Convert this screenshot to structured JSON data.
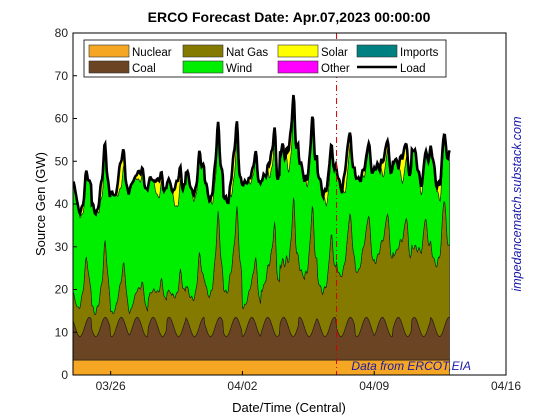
{
  "chart_data": {
    "type": "area",
    "title": "ERCO Forecast Date: Apr.07,2023 00:00:00",
    "xlabel": "Date/Time (Central)",
    "ylabel": "Source Gen (GW)",
    "ylim": [
      0,
      80
    ],
    "yticks": [
      0,
      10,
      20,
      30,
      40,
      50,
      60,
      70,
      80
    ],
    "xlim": [
      "2023-03-24",
      "2023-04-16"
    ],
    "xticks": [
      {
        "date": "2023-03-26",
        "label": "03/26"
      },
      {
        "date": "2023-04-02",
        "label": "04/02"
      },
      {
        "date": "2023-04-09",
        "label": "04/09"
      },
      {
        "date": "2023-04-16",
        "label": "04/16"
      }
    ],
    "data_start": "2023-03-24",
    "data_end": "2023-04-13T00:00",
    "forecast_line": "2023-04-07T00:00",
    "legend": {
      "placement": "top",
      "entries": [
        {
          "name": "Nuclear",
          "color": "#f5a623",
          "kind": "patch"
        },
        {
          "name": "Nat Gas",
          "color": "#857a00",
          "kind": "patch"
        },
        {
          "name": "Solar",
          "color": "#ffff00",
          "kind": "patch"
        },
        {
          "name": "Imports",
          "color": "#008080",
          "kind": "patch"
        },
        {
          "name": "Coal",
          "color": "#6b4523",
          "kind": "patch"
        },
        {
          "name": "Wind",
          "color": "#00ee00",
          "kind": "patch"
        },
        {
          "name": "Other",
          "color": "#ff00ff",
          "kind": "patch"
        },
        {
          "name": "Load",
          "color": "#000000",
          "kind": "line"
        }
      ]
    },
    "daily": [
      {
        "date": "03/24",
        "load_min": 34,
        "load_max": 45,
        "wind_min": 18,
        "wind_max": 26,
        "gas_min": 6,
        "gas_max": 15
      },
      {
        "date": "03/25",
        "load_min": 33,
        "load_max": 47,
        "wind_min": 20,
        "wind_max": 24,
        "gas_min": 5,
        "gas_max": 18
      },
      {
        "date": "03/26",
        "load_min": 34,
        "load_max": 47,
        "wind_min": 22,
        "wind_max": 28,
        "gas_min": 5,
        "gas_max": 13
      },
      {
        "date": "03/27",
        "load_min": 35,
        "load_max": 46,
        "wind_min": 25,
        "wind_max": 29,
        "gas_min": 5,
        "gas_max": 11
      },
      {
        "date": "03/28",
        "load_min": 35,
        "load_max": 47,
        "wind_min": 22,
        "wind_max": 27,
        "gas_min": 6,
        "gas_max": 13
      },
      {
        "date": "03/29",
        "load_min": 34,
        "load_max": 46,
        "wind_min": 20,
        "wind_max": 26,
        "gas_min": 6,
        "gas_max": 15
      },
      {
        "date": "03/30",
        "load_min": 34,
        "load_max": 48,
        "wind_min": 22,
        "wind_max": 27,
        "gas_min": 7,
        "gas_max": 17
      },
      {
        "date": "03/31",
        "load_min": 35,
        "load_max": 52,
        "wind_min": 18,
        "wind_max": 24,
        "gas_min": 9,
        "gas_max": 24
      },
      {
        "date": "04/01",
        "load_min": 36,
        "load_max": 53,
        "wind_min": 16,
        "wind_max": 22,
        "gas_min": 10,
        "gas_max": 26
      },
      {
        "date": "04/02",
        "load_min": 34,
        "load_max": 47,
        "wind_min": 23,
        "wind_max": 29,
        "gas_min": 6,
        "gas_max": 15
      },
      {
        "date": "04/03",
        "load_min": 36,
        "load_max": 53,
        "wind_min": 19,
        "wind_max": 26,
        "gas_min": 9,
        "gas_max": 26
      },
      {
        "date": "04/04",
        "load_min": 37,
        "load_max": 60,
        "wind_min": 20,
        "wind_max": 27,
        "gas_min": 12,
        "gas_max": 32
      },
      {
        "date": "04/05",
        "load_min": 36,
        "load_max": 55,
        "wind_min": 19,
        "wind_max": 25,
        "gas_min": 11,
        "gas_max": 29
      },
      {
        "date": "04/06",
        "load_min": 34,
        "load_max": 45,
        "wind_min": 18,
        "wind_max": 25,
        "gas_min": 9,
        "gas_max": 21
      },
      {
        "date": "04/07",
        "load_min": 33,
        "load_max": 43,
        "wind_min": 15,
        "wind_max": 22,
        "gas_min": 14,
        "gas_max": 24
      },
      {
        "date": "04/08",
        "load_min": 32,
        "load_max": 44,
        "wind_min": 15,
        "wind_max": 22,
        "gas_min": 15,
        "gas_max": 25
      },
      {
        "date": "04/09",
        "load_min": 33,
        "load_max": 47,
        "wind_min": 14,
        "wind_max": 22,
        "gas_min": 16,
        "gas_max": 27
      },
      {
        "date": "04/10",
        "load_min": 34,
        "load_max": 47,
        "wind_min": 13,
        "wind_max": 22,
        "gas_min": 16,
        "gas_max": 28
      },
      {
        "date": "04/11",
        "load_min": 35,
        "load_max": 48,
        "wind_min": 13,
        "wind_max": 23,
        "gas_min": 16,
        "gas_max": 28
      },
      {
        "date": "04/12",
        "load_min": 35,
        "load_max": 49,
        "wind_min": 12,
        "wind_max": 23,
        "gas_min": 15,
        "gas_max": 30
      }
    ],
    "nuclear_gw": 3.5,
    "coal_gw": [
      5.5,
      10
    ],
    "solar_peak_gw": [
      2,
      6
    ],
    "annotations": [
      "Data from ERCOT,EIA",
      "impedancematch.substack.com"
    ]
  }
}
